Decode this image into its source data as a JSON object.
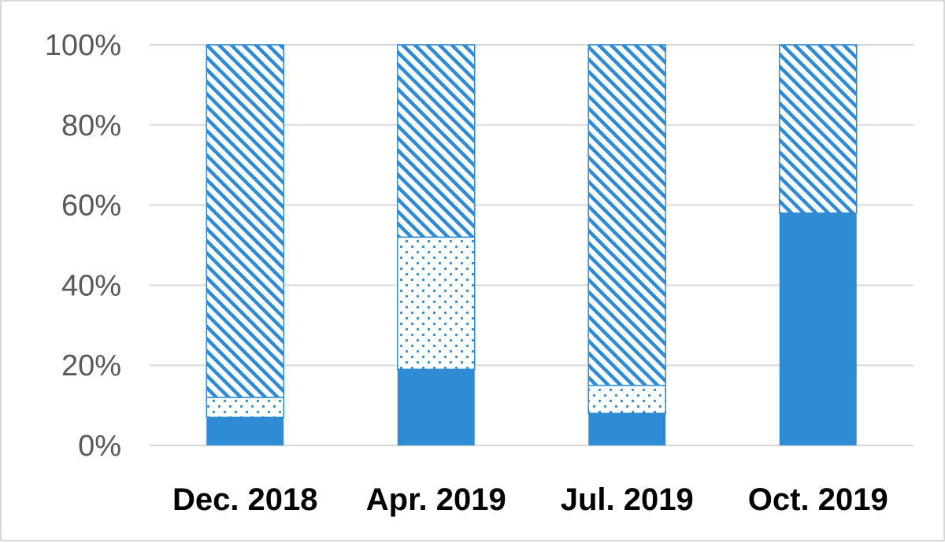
{
  "chart_data": {
    "type": "bar",
    "stacked": true,
    "percent_stacked": true,
    "categories": [
      "Dec. 2018",
      "Apr. 2019",
      "Jul. 2019",
      "Oct. 2019"
    ],
    "series": [
      {
        "fill": "solid",
        "values": [
          7,
          19,
          8,
          58
        ]
      },
      {
        "fill": "dotted",
        "values": [
          5,
          33,
          7,
          0
        ]
      },
      {
        "fill": "diagonal-hatch",
        "values": [
          88,
          48,
          85,
          42
        ]
      }
    ],
    "ylim": [
      0,
      100
    ],
    "yticks": [
      "0%",
      "20%",
      "40%",
      "60%",
      "80%",
      "100%"
    ],
    "grid": true,
    "legend": "none",
    "colors": {
      "bar": "#2e8bd4",
      "grid": "#d9d9d9",
      "frame": "#d9d9d9"
    }
  }
}
